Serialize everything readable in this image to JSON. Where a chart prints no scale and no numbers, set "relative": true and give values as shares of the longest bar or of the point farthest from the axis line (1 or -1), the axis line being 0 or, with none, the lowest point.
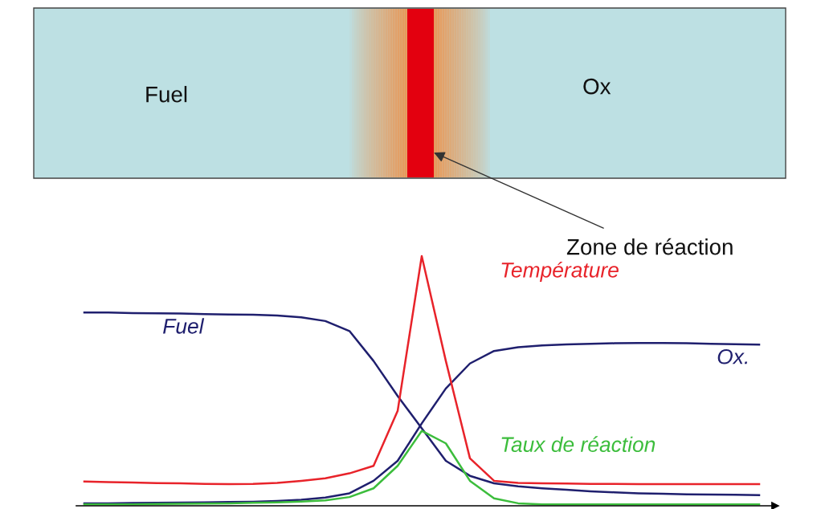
{
  "chart_data": {
    "type": "line",
    "relative": true,
    "legend": false,
    "marker": "none",
    "line_style": "solid",
    "categories": [
      null,
      null,
      null,
      null,
      null,
      null,
      null,
      null,
      null,
      null,
      null,
      null,
      null,
      null,
      null,
      null,
      null,
      null,
      null,
      null,
      null,
      null,
      null,
      null,
      null,
      null,
      null,
      null,
      null
    ],
    "annotations": [
      "Fuel",
      "Ox",
      "Zone de réaction"
    ],
    "series": [
      {
        "name": "Fuel",
        "color": "#1f1f6e",
        "values": [
          0.774,
          0.774,
          0.772,
          0.771,
          0.77,
          0.768,
          0.766,
          0.765,
          0.762,
          0.755,
          0.74,
          0.7,
          0.58,
          0.44,
          0.31,
          0.18,
          0.12,
          0.09,
          0.078,
          0.07,
          0.064,
          0.058,
          0.054,
          0.05,
          0.048,
          0.046,
          0.045,
          0.044,
          0.043
        ]
      },
      {
        "name": "Ox.",
        "color": "#1f1f6e",
        "values": [
          0.01,
          0.01,
          0.011,
          0.012,
          0.013,
          0.014,
          0.015,
          0.016,
          0.019,
          0.024,
          0.033,
          0.05,
          0.1,
          0.18,
          0.33,
          0.47,
          0.57,
          0.62,
          0.635,
          0.642,
          0.646,
          0.649,
          0.651,
          0.652,
          0.652,
          0.651,
          0.649,
          0.647,
          0.646
        ]
      },
      {
        "name": "Température",
        "color": "#e8232a",
        "values": [
          0.097,
          0.095,
          0.093,
          0.091,
          0.09,
          0.088,
          0.087,
          0.088,
          0.092,
          0.1,
          0.11,
          0.13,
          0.16,
          0.38,
          1.0,
          0.58,
          0.19,
          0.1,
          0.092,
          0.09,
          0.089,
          0.088,
          0.088,
          0.087,
          0.087,
          0.087,
          0.087,
          0.087,
          0.087
        ]
      },
      {
        "name": "Taux de réaction",
        "color": "#3cbd3c",
        "values": [
          0.006,
          0.006,
          0.006,
          0.007,
          0.008,
          0.009,
          0.01,
          0.012,
          0.014,
          0.017,
          0.022,
          0.035,
          0.07,
          0.16,
          0.3,
          0.25,
          0.1,
          0.03,
          0.01,
          0.006,
          0.006,
          0.006,
          0.006,
          0.006,
          0.006,
          0.006,
          0.006,
          0.006,
          0.006
        ]
      }
    ]
  }
}
